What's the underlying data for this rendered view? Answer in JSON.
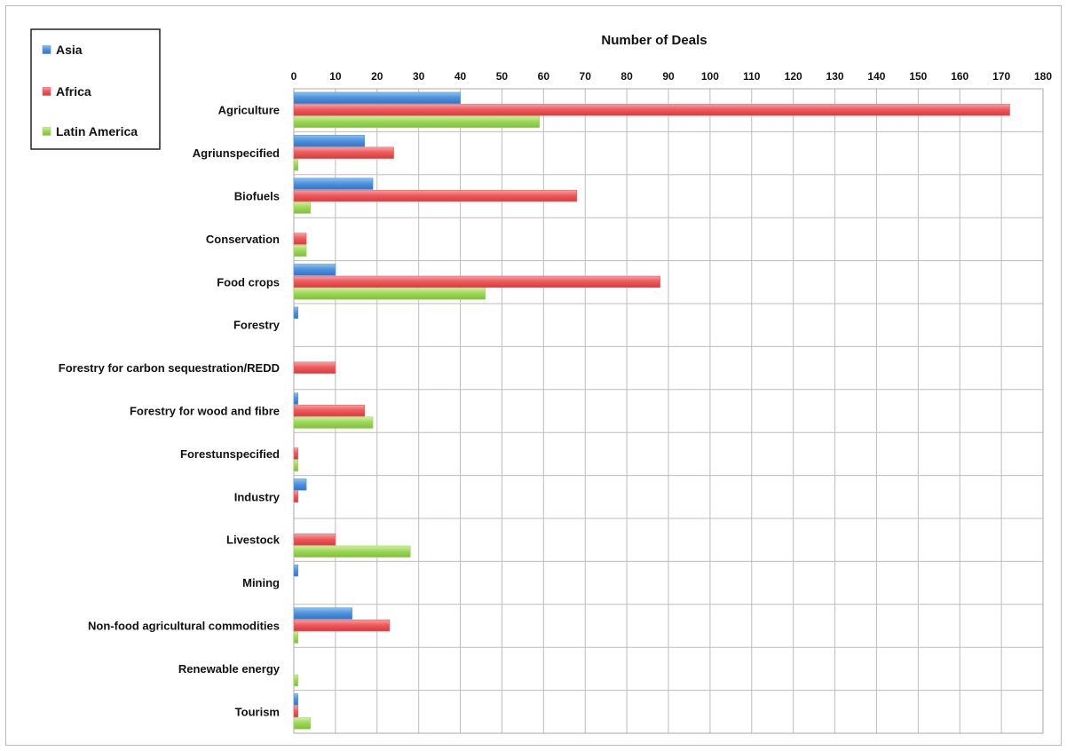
{
  "chart_data": {
    "type": "bar",
    "orientation": "horizontal",
    "xlabel": "Number of Deals",
    "xlim": [
      0,
      180
    ],
    "xticks": [
      0,
      10,
      20,
      30,
      40,
      50,
      60,
      70,
      80,
      90,
      100,
      110,
      120,
      130,
      140,
      150,
      160,
      170,
      180
    ],
    "grid": true,
    "legend_position": "top-left",
    "categories": [
      "Agriculture",
      "Agriunspecified",
      "Biofuels",
      "Conservation",
      "Food crops",
      "Forestry",
      "Forestry for carbon sequestration/REDD",
      "Forestry for wood and fibre",
      "Forestunspecified",
      "Industry",
      "Livestock",
      "Mining",
      "Non-food agricultural commodities",
      "Renewable energy",
      "Tourism"
    ],
    "series": [
      {
        "name": "Asia",
        "color": "#4f94de",
        "values": [
          40,
          17,
          19,
          0,
          10,
          1,
          0,
          1,
          0,
          3,
          0,
          1,
          14,
          0,
          1
        ]
      },
      {
        "name": "Africa",
        "color": "#ef5b5e",
        "values": [
          172,
          24,
          68,
          3,
          88,
          0,
          10,
          17,
          1,
          1,
          10,
          0,
          23,
          0,
          1
        ]
      },
      {
        "name": "Latin America",
        "color": "#9fd85a",
        "values": [
          59,
          1,
          4,
          3,
          46,
          0,
          0,
          19,
          1,
          0,
          28,
          0,
          1,
          1,
          4
        ]
      }
    ]
  }
}
